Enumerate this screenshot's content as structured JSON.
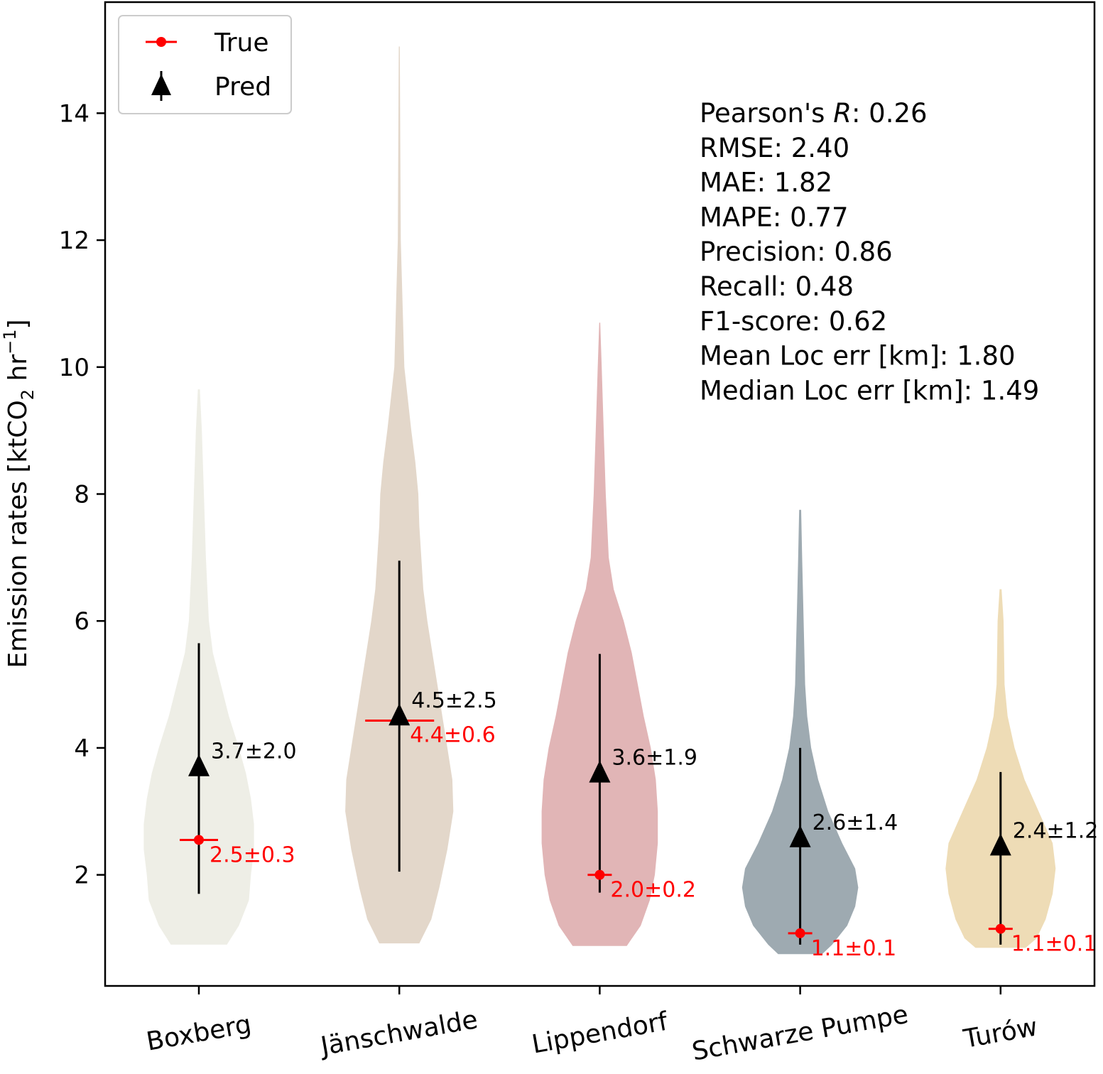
{
  "chart_data": {
    "type": "violin",
    "ylabel": {
      "main": "Emission rates [ktCO",
      "sub": "2",
      "mid": " hr",
      "sup": "−1",
      "end": "]"
    },
    "ylim": [
      0.25,
      15.75
    ],
    "yticks": [
      2,
      4,
      6,
      8,
      10,
      12,
      14
    ],
    "categories": [
      "Boxberg",
      "Jänschwalde",
      "Lippendorf",
      "Schwarze Pumpe",
      "Turów"
    ],
    "legend": {
      "position": "upper-left",
      "entries": [
        {
          "label": "True",
          "color": "#ff0000"
        },
        {
          "label": "Pred",
          "color": "#000000"
        }
      ]
    },
    "stats": [
      {
        "label": "Pearson's ",
        "italic": "R",
        "rest": ": 0.26"
      },
      {
        "label": "RMSE: 2.40"
      },
      {
        "label": "MAE: 1.82"
      },
      {
        "label": "MAPE: 0.77"
      },
      {
        "label": "Precision: 0.86"
      },
      {
        "label": "Recall: 0.48"
      },
      {
        "label": "F1-score: 0.62"
      },
      {
        "label": "Mean Loc err [km]: 1.80"
      },
      {
        "label": "Median Loc err [km]: 1.49"
      }
    ],
    "sites": [
      {
        "name": "Boxberg",
        "color": "#eeeee6",
        "pred": 3.7,
        "pred_low": 1.7,
        "pred_high": 5.65,
        "pred_label": "3.7±2.0",
        "true": 2.55,
        "true_label": "2.5±0.3",
        "violin": [
          [
            0.9,
            0.28
          ],
          [
            1.2,
            0.4
          ],
          [
            1.6,
            0.5
          ],
          [
            2.0,
            0.52
          ],
          [
            2.4,
            0.55
          ],
          [
            2.8,
            0.55
          ],
          [
            3.2,
            0.52
          ],
          [
            3.6,
            0.47
          ],
          [
            4.0,
            0.4
          ],
          [
            4.5,
            0.3
          ],
          [
            5.0,
            0.22
          ],
          [
            5.5,
            0.14
          ],
          [
            6.0,
            0.1
          ],
          [
            7.0,
            0.07
          ],
          [
            8.0,
            0.05
          ],
          [
            9.0,
            0.03
          ],
          [
            9.65,
            0.01
          ]
        ]
      },
      {
        "name": "Jänschwalde",
        "color": "#e3d7ca",
        "pred": 4.5,
        "pred_low": 2.05,
        "pred_high": 6.95,
        "pred_label": "4.5±2.5",
        "true": 4.43,
        "true_label": "4.4±0.6",
        "violin": [
          [
            0.92,
            0.2
          ],
          [
            1.3,
            0.32
          ],
          [
            1.8,
            0.4
          ],
          [
            2.4,
            0.48
          ],
          [
            3.0,
            0.54
          ],
          [
            3.5,
            0.53
          ],
          [
            4.0,
            0.48
          ],
          [
            4.5,
            0.43
          ],
          [
            5.0,
            0.38
          ],
          [
            5.5,
            0.33
          ],
          [
            6.0,
            0.28
          ],
          [
            6.5,
            0.24
          ],
          [
            7.0,
            0.22
          ],
          [
            7.5,
            0.2
          ],
          [
            8.0,
            0.19
          ],
          [
            8.5,
            0.16
          ],
          [
            9.0,
            0.12
          ],
          [
            10.0,
            0.05
          ],
          [
            12.0,
            0.015
          ],
          [
            15.05,
            0.005
          ]
        ]
      },
      {
        "name": "Lippendorf",
        "color": "#e1b5b6",
        "pred": 3.6,
        "pred_low": 1.72,
        "pred_high": 5.48,
        "pred_label": "3.6±1.9",
        "true": 2.0,
        "true_label": "2.0±0.2",
        "violin": [
          [
            0.88,
            0.27
          ],
          [
            1.2,
            0.41
          ],
          [
            1.6,
            0.5
          ],
          [
            2.0,
            0.55
          ],
          [
            2.5,
            0.58
          ],
          [
            3.0,
            0.58
          ],
          [
            3.5,
            0.56
          ],
          [
            4.0,
            0.51
          ],
          [
            4.5,
            0.44
          ],
          [
            5.0,
            0.38
          ],
          [
            5.5,
            0.32
          ],
          [
            6.0,
            0.24
          ],
          [
            6.5,
            0.14
          ],
          [
            7.0,
            0.09
          ],
          [
            8.0,
            0.06
          ],
          [
            9.0,
            0.04
          ],
          [
            10.0,
            0.02
          ],
          [
            10.7,
            0.005
          ]
        ]
      },
      {
        "name": "Schwarze Pumpe",
        "color": "#9eaab1",
        "pred": 2.58,
        "pred_low": 0.9,
        "pred_high": 4.0,
        "pred_label": "2.6±1.4",
        "true": 1.08,
        "true_label": "1.1±0.1",
        "violin": [
          [
            0.75,
            0.22
          ],
          [
            0.9,
            0.32
          ],
          [
            1.2,
            0.47
          ],
          [
            1.5,
            0.55
          ],
          [
            1.8,
            0.58
          ],
          [
            2.1,
            0.55
          ],
          [
            2.5,
            0.42
          ],
          [
            3.0,
            0.28
          ],
          [
            3.5,
            0.18
          ],
          [
            4.0,
            0.11
          ],
          [
            4.5,
            0.07
          ],
          [
            5.0,
            0.05
          ],
          [
            6.0,
            0.035
          ],
          [
            7.0,
            0.02
          ],
          [
            7.75,
            0.01
          ]
        ]
      },
      {
        "name": "Turów",
        "color": "#eedcb6",
        "pred": 2.45,
        "pred_low": 0.9,
        "pred_high": 3.62,
        "pred_label": "2.4±1.2",
        "true": 1.15,
        "true_label": "1.1±0.1",
        "violin": [
          [
            0.85,
            0.25
          ],
          [
            1.0,
            0.36
          ],
          [
            1.3,
            0.45
          ],
          [
            1.7,
            0.52
          ],
          [
            2.1,
            0.55
          ],
          [
            2.5,
            0.52
          ],
          [
            3.0,
            0.38
          ],
          [
            3.5,
            0.24
          ],
          [
            4.0,
            0.14
          ],
          [
            4.5,
            0.07
          ],
          [
            5.0,
            0.04
          ],
          [
            6.0,
            0.03
          ],
          [
            6.5,
            0.01
          ]
        ]
      }
    ]
  }
}
